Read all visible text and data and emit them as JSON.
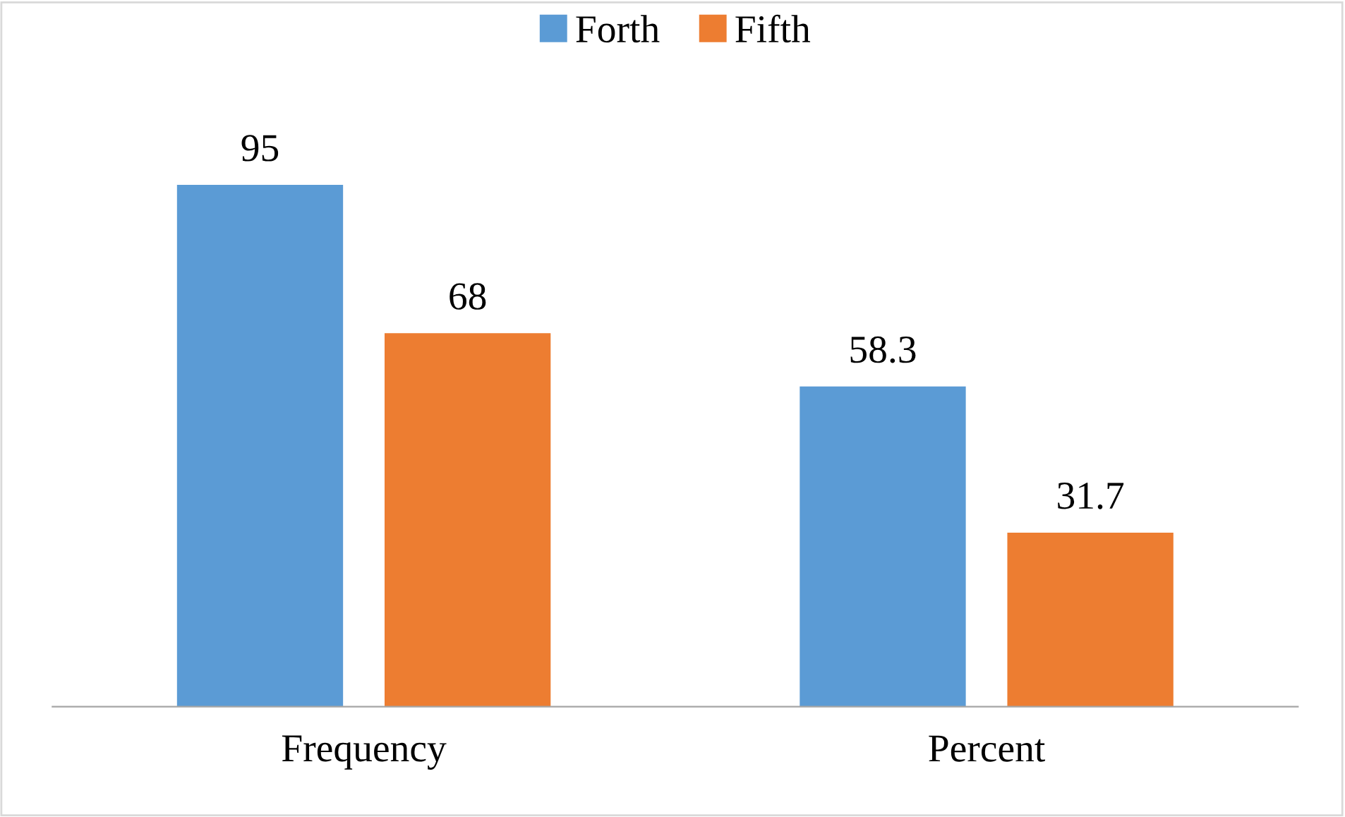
{
  "chart_data": {
    "type": "bar",
    "categories": [
      "Frequency",
      "Percent"
    ],
    "series": [
      {
        "name": "Forth",
        "color": "#5b9bd5",
        "values": [
          95,
          58.3
        ]
      },
      {
        "name": "Fifth",
        "color": "#ed7d31",
        "values": [
          68,
          31.7
        ]
      }
    ],
    "data_labels": true,
    "legend": "top"
  }
}
